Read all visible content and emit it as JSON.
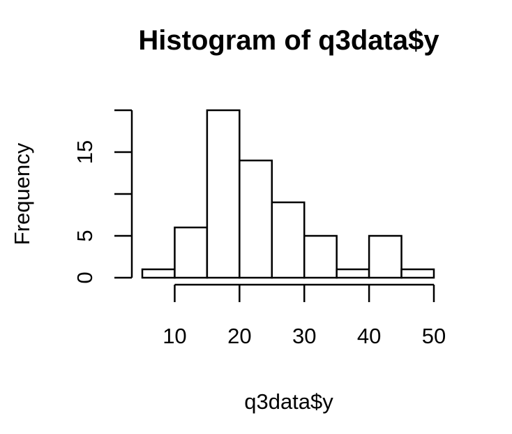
{
  "chart_data": {
    "type": "bar",
    "title": "Histogram of q3data$y",
    "xlabel": "q3data$y",
    "ylabel": "Frequency",
    "bins": [
      {
        "start": 5,
        "end": 10,
        "count": 1
      },
      {
        "start": 10,
        "end": 15,
        "count": 6
      },
      {
        "start": 15,
        "end": 20,
        "count": 20
      },
      {
        "start": 20,
        "end": 25,
        "count": 14
      },
      {
        "start": 25,
        "end": 30,
        "count": 9
      },
      {
        "start": 30,
        "end": 35,
        "count": 5
      },
      {
        "start": 35,
        "end": 40,
        "count": 1
      },
      {
        "start": 40,
        "end": 45,
        "count": 5
      },
      {
        "start": 45,
        "end": 50,
        "count": 1
      }
    ],
    "x_ticks": [
      10,
      20,
      30,
      40,
      50
    ],
    "y_ticks": [
      0,
      5,
      10,
      15,
      20
    ],
    "y_tick_labels": [
      "0",
      "5",
      "",
      "15",
      ""
    ],
    "xlim": [
      5,
      50
    ],
    "ylim": [
      0,
      20
    ],
    "grid": false,
    "bar_fill": "#ffffff",
    "bar_stroke": "#000000"
  }
}
